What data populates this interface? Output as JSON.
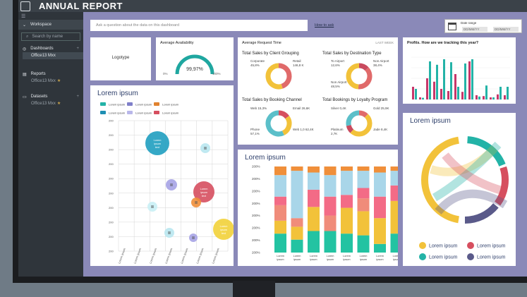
{
  "app": {
    "title": "ANNUAL REPORT",
    "menu_glyph": "☰"
  },
  "sidebar": {
    "workspace": "Workspace",
    "search_placeholder": "Search by name",
    "dashboards": {
      "label": "Dashboards",
      "item": "Office13 Mxx"
    },
    "reports": {
      "label": "Reports",
      "item": "Office13 Mxx"
    },
    "datasets": {
      "label": "Datasets",
      "item": "Office13 Mxx"
    }
  },
  "qna": {
    "placeholder": "Ask a question about the data on this dashboard",
    "howto": "How to ask"
  },
  "date_range": {
    "label": "Date range",
    "from": "DD/MM/YY",
    "to": "DD/MM/YY"
  },
  "logo": {
    "text": "Logotype"
  },
  "availability": {
    "title": "Average Availability",
    "value": "99,97%",
    "min": "0%",
    "max": "100%",
    "fraction": 0.9997
  },
  "request_time": {
    "title": "Average Request Time",
    "period": "LAST WEEK",
    "client": {
      "title": "Total Sales by Client Grouping",
      "labels": [
        "Corporate\n45,8%",
        "Retail\n146,8 K"
      ],
      "colors": [
        "#e06a6a",
        "#f2c23a"
      ]
    },
    "destination": {
      "title": "Total Sales by Destination Type",
      "labels": [
        "To Airport\n12,6%",
        "Non Airport\n38,4%",
        "Non Airport\n48,5%"
      ],
      "colors": [
        "#c94a5e",
        "#e06a6a",
        "#f2c23a"
      ]
    },
    "channel": {
      "title": "Total Sales by Booking Channel",
      "labels": [
        "Web 15,3%",
        "Email 26,6K",
        "Phone\n57,1%",
        "Web 1,0 62,4K"
      ],
      "colors": [
        "#d64f5f",
        "#f2c23a",
        "#5bbfc9"
      ]
    },
    "loyalty": {
      "title": "Total Bookings by Loyalty Program",
      "labels": [
        "Silver 0,4K",
        "Gold 25,9K",
        "Platinum\n2,7K",
        "Jade 8,4K"
      ],
      "colors": [
        "#e06a6a",
        "#f2c23a",
        "#c94a5e",
        "#5bbfc9"
      ]
    }
  },
  "profits": {
    "title": "Profits. How are we tracking this year?",
    "pink": [
      0.3,
      0.05,
      0.5,
      0.42,
      0.25,
      0.2,
      0.6,
      0.18,
      0.9,
      0.1,
      0.08,
      0.05,
      0.12,
      0.1
    ],
    "teal": [
      0.25,
      0.04,
      0.9,
      0.82,
      0.95,
      0.88,
      0.3,
      0.85,
      0.95,
      0.07,
      0.33,
      0.05,
      0.3,
      0.3
    ],
    "colors": {
      "pink": "#c7366a",
      "teal": "#23b3a7"
    }
  },
  "bubble": {
    "title": "Lorem ipsum",
    "legend": [
      "Lorem ipsum",
      "Lorem ipsum",
      "Lorem ipsum",
      "Lorem ipsum",
      "Lorem ipsum",
      "Lorem ipsum"
    ],
    "legend_colors": [
      "#23b3a7",
      "#7f7fc9",
      "#e0822f",
      "#1f8fb3",
      "#b9b7ea",
      "#d64f5f"
    ],
    "bubble_label": "Lorem ipsum text",
    "glyph": "≣",
    "y_ticks": [
      "200",
      "200",
      "200",
      "200",
      "200",
      "200",
      "200",
      "200",
      "200",
      "200"
    ],
    "x_ticks": [
      "Lorem ipsum",
      "Lorem ipsum",
      "Lorem ipsum",
      "Lorem ipsum",
      "Lorem ipsum",
      "Lorem ipsum",
      "Lorem ipsum"
    ]
  },
  "stacked": {
    "title": "Lorem ipsum",
    "y_ticks": [
      "200%",
      "200%",
      "200%",
      "200%",
      "200%",
      "200%",
      "200%",
      "200%"
    ],
    "x_labels": [
      "Lorem ipsum",
      "Lorem ipsum",
      "Lorem ipsum",
      "Lorem ipsum",
      "Lorem ipsum",
      "Lorem ipsum",
      "Lorem ipsum",
      "Lorem ipsum"
    ],
    "colors": [
      "#23c3a2",
      "#f2c23a",
      "#f08c7a",
      "#f36b86",
      "#a9d6e9",
      "#f08f3a"
    ],
    "stacks": [
      [
        0.22,
        0.15,
        0.18,
        0.1,
        0.25,
        0.1
      ],
      [
        0.15,
        0.15,
        0.1,
        0.0,
        0.55,
        0.05
      ],
      [
        0.25,
        0.28,
        0.0,
        0.2,
        0.2,
        0.07
      ],
      [
        0.25,
        0.0,
        0.18,
        0.22,
        0.25,
        0.1
      ],
      [
        0.22,
        0.3,
        0.0,
        0.15,
        0.28,
        0.05
      ],
      [
        0.2,
        0.28,
        0.15,
        0.12,
        0.2,
        0.05
      ],
      [
        0.1,
        0.3,
        0.0,
        0.25,
        0.28,
        0.07
      ],
      [
        0.22,
        0.38,
        0.0,
        0.18,
        0.17,
        0.05
      ]
    ]
  },
  "chord": {
    "title": "Lorem ipsum",
    "legend": [
      "Lorem ipsum",
      "Lorem ipsum",
      "Lorem ipsum",
      "Lorem ipsum"
    ],
    "colors": [
      "#f2c23a",
      "#d64f5f",
      "#23b3a7",
      "#5a5a8a"
    ]
  }
}
